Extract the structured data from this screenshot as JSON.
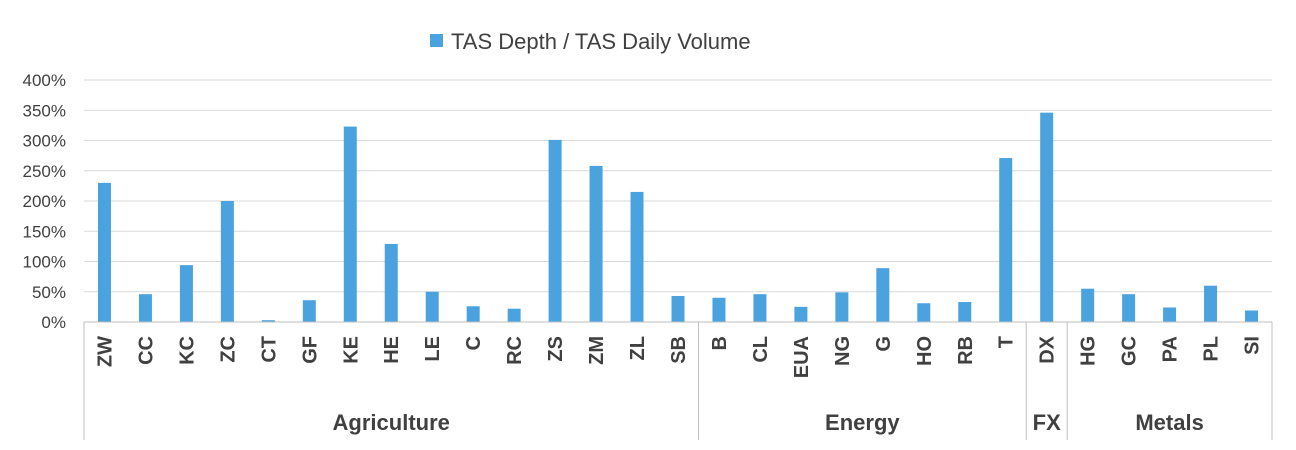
{
  "chart_data": {
    "type": "bar",
    "ylim": [
      0,
      4
    ],
    "yticks": [
      "0%",
      "50%",
      "100%",
      "150%",
      "200%",
      "250%",
      "300%",
      "350%",
      "400%"
    ],
    "legend": {
      "position": "top-center"
    },
    "grid": true,
    "color": "#4aa3df",
    "categories": [
      "ZW",
      "CC",
      "KC",
      "ZC",
      "CT",
      "GF",
      "KE",
      "HE",
      "LE",
      "C",
      "RC",
      "ZS",
      "ZM",
      "ZL",
      "SB",
      "B",
      "CL",
      "EUA",
      "NG",
      "G",
      "HO",
      "RB",
      "T",
      "DX",
      "HG",
      "GC",
      "PA",
      "PL",
      "SI"
    ],
    "series": [
      {
        "name": "TAS Depth / TAS Daily Volume",
        "values": [
          2.3,
          0.46,
          0.94,
          2.0,
          0.03,
          0.36,
          3.23,
          1.29,
          0.5,
          0.26,
          0.22,
          3.01,
          2.58,
          2.15,
          0.43,
          0.4,
          0.46,
          0.25,
          0.49,
          0.89,
          0.31,
          0.33,
          2.71,
          3.46,
          0.55,
          0.46,
          0.24,
          0.6,
          0.19
        ]
      }
    ],
    "groups": [
      {
        "name": "Agriculture",
        "start": 0,
        "end": 14
      },
      {
        "name": "Energy",
        "start": 15,
        "end": 22
      },
      {
        "name": "FX",
        "start": 23,
        "end": 23
      },
      {
        "name": "Metals",
        "start": 24,
        "end": 28
      }
    ]
  }
}
